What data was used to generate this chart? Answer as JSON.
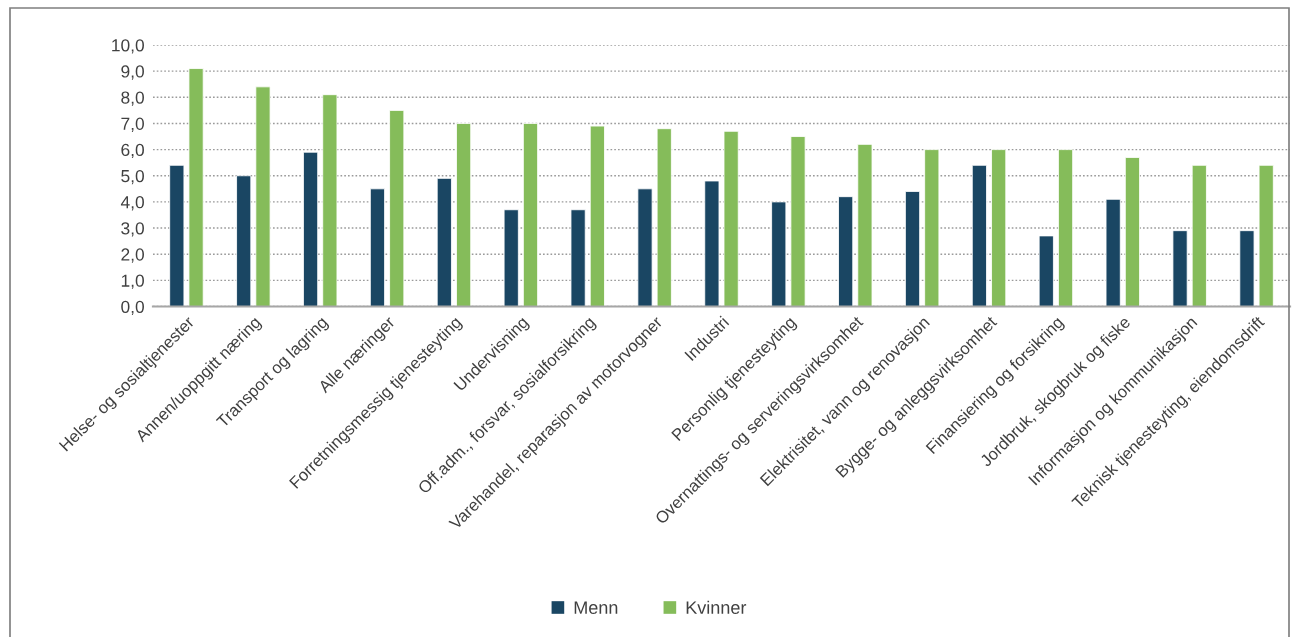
{
  "chart_data": {
    "type": "bar",
    "categories": [
      "Helse- og sosialtjenester",
      "Annen/uoppgitt næring",
      "Transport og lagring",
      "Alle næringer",
      "Forretningsmessig tjenesteyting",
      "Undervisning",
      "Off.adm., forsvar, sosialforsikring",
      "Varehandel, reparasjon av motorvogner",
      "Industri",
      "Personlig tjenesteyting",
      "Overnattings- og serveringsvirksomhet",
      "Elektrisitet, vann og renovasjon",
      "Bygge- og anleggsvirksomhet",
      "Finansiering og forsikring",
      "Jordbruk, skogbruk og fiske",
      "Informasjon og kommunikasjon",
      "Teknisk tjenesteyting, eiendomsdrift"
    ],
    "series": [
      {
        "name": "Menn",
        "color": "#1a4663",
        "values": [
          5.4,
          5.0,
          5.9,
          4.5,
          4.9,
          3.7,
          3.7,
          4.5,
          4.8,
          4.0,
          4.2,
          4.4,
          5.4,
          2.7,
          4.1,
          2.9,
          2.9
        ]
      },
      {
        "name": "Kvinner",
        "color": "#85bc5a",
        "values": [
          9.1,
          8.4,
          8.1,
          7.5,
          7.0,
          7.0,
          6.9,
          6.8,
          6.7,
          6.5,
          6.2,
          6.0,
          6.0,
          6.0,
          5.7,
          5.4,
          5.4
        ]
      }
    ],
    "ylim": [
      0,
      10
    ],
    "yticks": [
      {
        "value": 0,
        "label": "0,0"
      },
      {
        "value": 1,
        "label": "1,0"
      },
      {
        "value": 2,
        "label": "2,0"
      },
      {
        "value": 3,
        "label": "3,0"
      },
      {
        "value": 4,
        "label": "4,0"
      },
      {
        "value": 5,
        "label": "5,0"
      },
      {
        "value": 6,
        "label": "6,0"
      },
      {
        "value": 7,
        "label": "7,0"
      },
      {
        "value": 8,
        "label": "8,0"
      },
      {
        "value": 9,
        "label": "9,0"
      },
      {
        "value": 10,
        "label": "10,0"
      }
    ],
    "grid": "y",
    "legend": "bottom"
  }
}
